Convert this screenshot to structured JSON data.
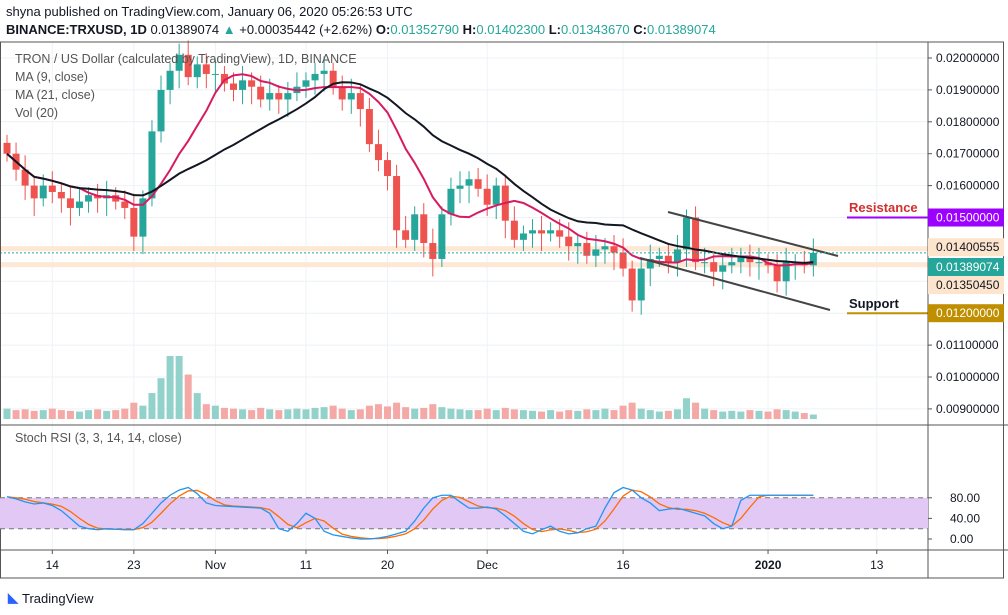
{
  "header": {
    "publisher_line": "shyna published on TradingView.com, January 06, 2020 05:26:53 UTC",
    "symbol": "BINANCE:TRXUSD, 1D",
    "last": "0.01389074",
    "change": "+0.00035442 (+2.62%)",
    "o_label": "O:",
    "o": "0.01352790",
    "h_label": "H:",
    "h": "0.01402300",
    "l_label": "L:",
    "l": "0.01343670",
    "c_label": "C:",
    "c": "0.01389074"
  },
  "legend": {
    "title": "TRON / US Dollar (calculated by TradingView), 1D, BINANCE",
    "ma9": "MA (9, close)",
    "ma21": "MA (21, close)",
    "vol": "Vol (20)",
    "rsi": "Stoch RSI (3, 3, 14, 14, close)"
  },
  "annotations": {
    "resistance": "Resistance",
    "support": "Support"
  },
  "colors": {
    "up": "#26a69a",
    "down": "#ef5350",
    "ma9": "#d81b60",
    "ma21": "#131722",
    "resistance": "#9c00ff",
    "support": "#bf8f00",
    "rsi_band": "#e1c8f5",
    "k": "#2196f3",
    "d": "#ff6d00"
  },
  "logo": "TradingView",
  "chart_data": {
    "type": "candlestick",
    "start_date": "2019-10-09",
    "closes": [
      0.017,
      0.0165,
      0.016,
      0.0156,
      0.016,
      0.0158,
      0.0156,
      0.0153,
      0.0155,
      0.0157,
      0.0156,
      0.0157,
      0.0155,
      0.0153,
      0.0144,
      0.0156,
      0.0177,
      0.019,
      0.0196,
      0.0201,
      0.0194,
      0.0198,
      0.0195,
      0.0195,
      0.0192,
      0.019,
      0.0193,
      0.0191,
      0.0187,
      0.0189,
      0.0187,
      0.0189,
      0.0191,
      0.0193,
      0.0195,
      0.0196,
      0.0191,
      0.0187,
      0.0189,
      0.0184,
      0.0173,
      0.0168,
      0.0163,
      0.0146,
      0.0143,
      0.0151,
      0.0142,
      0.0137,
      0.0151,
      0.0159,
      0.016,
      0.0162,
      0.0159,
      0.0154,
      0.016,
      0.0149,
      0.0143,
      0.0145,
      0.0146,
      0.0145,
      0.0146,
      0.0144,
      0.0141,
      0.0142,
      0.0138,
      0.014,
      0.0141,
      0.0139,
      0.0134,
      0.0124,
      0.0134,
      0.0137,
      0.0138,
      0.0136,
      0.014,
      0.015,
      0.0136,
      0.0136,
      0.0133,
      0.0135,
      0.0136,
      0.0138,
      0.0136,
      0.0136,
      0.0135,
      0.013,
      0.0136,
      0.0136,
      0.0135,
      0.01389074
    ],
    "volumes": [
      14,
      12,
      13,
      11,
      12,
      14,
      12,
      11,
      10,
      12,
      13,
      11,
      12,
      14,
      22,
      18,
      35,
      55,
      85,
      85,
      60,
      35,
      20,
      18,
      15,
      14,
      13,
      12,
      15,
      13,
      12,
      13,
      14,
      13,
      15,
      16,
      18,
      14,
      12,
      13,
      18,
      20,
      17,
      22,
      16,
      14,
      15,
      20,
      16,
      14,
      13,
      12,
      12,
      14,
      12,
      15,
      13,
      12,
      11,
      10,
      12,
      10,
      12,
      11,
      13,
      12,
      14,
      12,
      18,
      22,
      14,
      12,
      10,
      11,
      13,
      28,
      22,
      14,
      12,
      10,
      11,
      10,
      12,
      11,
      10,
      13,
      12,
      10,
      8,
      6
    ],
    "stoch_k": [
      82,
      78,
      72,
      68,
      70,
      65,
      55,
      40,
      25,
      20,
      18,
      20,
      19,
      18,
      18,
      30,
      50,
      70,
      85,
      95,
      100,
      88,
      70,
      65,
      64,
      63,
      62,
      61,
      60,
      50,
      20,
      15,
      30,
      50,
      40,
      15,
      8,
      5,
      2,
      0,
      0,
      2,
      5,
      10,
      15,
      35,
      60,
      80,
      85,
      85,
      72,
      60,
      60,
      62,
      58,
      45,
      30,
      15,
      10,
      18,
      25,
      15,
      10,
      12,
      20,
      25,
      60,
      90,
      100,
      95,
      80,
      70,
      55,
      58,
      60,
      55,
      50,
      45,
      30,
      20,
      25,
      75,
      85,
      85,
      85,
      85,
      85,
      85,
      85,
      85
    ],
    "rsi_levels": {
      "upper": 80,
      "lower": 20
    },
    "price_ticks": [
      "0.02000000",
      "0.01900000",
      "0.01800000",
      "0.01700000",
      "0.01600000",
      "0.01500000",
      "0.01400000",
      "0.01300000",
      "0.01200000",
      "0.01100000",
      "0.01000000",
      "0.00900000"
    ],
    "price_labels": {
      "resistance": "0.01500000",
      "hi_band": "0.01400555",
      "last": "0.01389074",
      "lo_band": "0.01350450",
      "support": "0.01200000"
    },
    "rsi_ticks": [
      "80.00",
      "40.00",
      "0.00"
    ],
    "x_ticks": [
      "14",
      "23",
      "Nov",
      "11",
      "20",
      "Dec",
      "16",
      "2020",
      "13"
    ],
    "x_tick_days": [
      5,
      14,
      23,
      33,
      42,
      53,
      68,
      84,
      96
    ]
  }
}
